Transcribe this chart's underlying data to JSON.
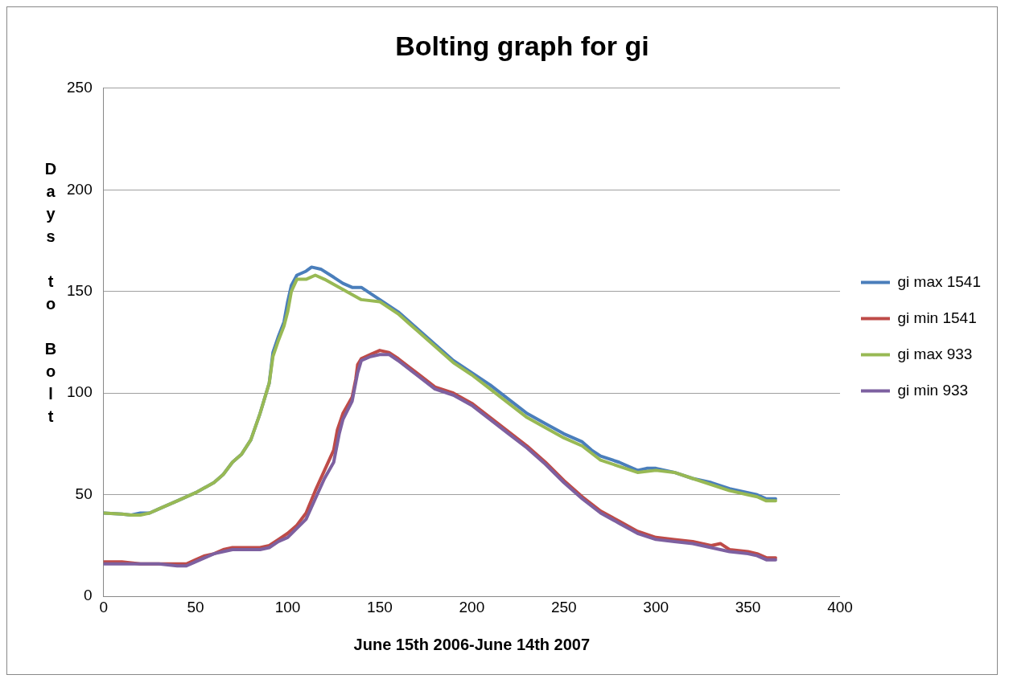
{
  "chart_data": {
    "type": "line",
    "title": "Bolting graph for gi",
    "xlabel": "June 15th 2006-June 14th 2007",
    "ylabel": "Days to Bolt",
    "xlim": [
      0,
      400
    ],
    "xticks": [
      0,
      50,
      100,
      150,
      200,
      250,
      300,
      350,
      400
    ],
    "ylim": [
      0,
      250
    ],
    "yticks": [
      0,
      50,
      100,
      150,
      200,
      250
    ],
    "grid": "y",
    "legend": "right",
    "marker": "none",
    "line_style": "solid",
    "series": [
      {
        "name": "gi max 1541",
        "color": "#4a7ebb",
        "x": [
          0,
          10,
          15,
          20,
          25,
          30,
          40,
          50,
          60,
          65,
          70,
          75,
          80,
          85,
          90,
          92,
          95,
          98,
          100,
          102,
          105,
          110,
          113,
          118,
          125,
          130,
          135,
          140,
          150,
          160,
          170,
          180,
          190,
          200,
          210,
          220,
          230,
          240,
          250,
          260,
          265,
          270,
          280,
          290,
          295,
          300,
          310,
          320,
          330,
          340,
          350,
          355,
          360,
          365
        ],
        "values": [
          41,
          40.5,
          40,
          41,
          41,
          43,
          47,
          51,
          56,
          60,
          66,
          70,
          77,
          90,
          105,
          120,
          128,
          135,
          145,
          153,
          158,
          160,
          162,
          161,
          157,
          154,
          152,
          152,
          146,
          140,
          132,
          124,
          116,
          110,
          104,
          97,
          90,
          85,
          80,
          76,
          72,
          69,
          66,
          62,
          63,
          63,
          61,
          58,
          56,
          53,
          51,
          50,
          48,
          48
        ]
      },
      {
        "name": "gi min 1541",
        "color": "#be4b48",
        "x": [
          0,
          10,
          20,
          30,
          40,
          45,
          50,
          55,
          60,
          65,
          70,
          80,
          85,
          90,
          95,
          100,
          105,
          110,
          115,
          120,
          125,
          127,
          130,
          135,
          137,
          138,
          140,
          145,
          150,
          155,
          160,
          170,
          180,
          190,
          200,
          210,
          220,
          230,
          240,
          250,
          260,
          270,
          280,
          290,
          300,
          310,
          320,
          330,
          335,
          340,
          350,
          355,
          360,
          365
        ],
        "values": [
          17,
          17,
          16,
          16,
          16,
          16,
          18,
          20,
          21,
          23,
          24,
          24,
          24,
          25,
          28,
          31,
          35,
          41,
          52,
          62,
          72,
          82,
          90,
          98,
          107,
          114,
          117,
          119,
          121,
          120,
          117,
          110,
          103,
          100,
          95,
          88,
          81,
          74,
          66,
          57,
          49,
          42,
          37,
          32,
          29,
          28,
          27,
          25,
          26,
          23,
          22,
          21,
          19,
          19
        ]
      },
      {
        "name": "gi max 933",
        "color": "#98b954",
        "x": [
          0,
          10,
          15,
          20,
          25,
          30,
          40,
          50,
          60,
          65,
          70,
          75,
          80,
          85,
          90,
          92,
          95,
          98,
          100,
          102,
          105,
          110,
          115,
          120,
          130,
          140,
          150,
          160,
          170,
          180,
          190,
          200,
          210,
          220,
          230,
          240,
          250,
          260,
          270,
          280,
          290,
          300,
          310,
          320,
          330,
          340,
          350,
          355,
          360,
          365
        ],
        "values": [
          41,
          40.5,
          40,
          40,
          41,
          43,
          47,
          51,
          56,
          60,
          66,
          70,
          77,
          90,
          105,
          118,
          126,
          133,
          140,
          150,
          156,
          156,
          158,
          156,
          151,
          146,
          145,
          139,
          131,
          123,
          115,
          109,
          102,
          95,
          88,
          83,
          78,
          74,
          67,
          64,
          61,
          62,
          61,
          58,
          55,
          52,
          50,
          49,
          47,
          47
        ]
      },
      {
        "name": "gi min 933",
        "color": "#7d60a0",
        "x": [
          0,
          10,
          20,
          30,
          40,
          45,
          50,
          55,
          60,
          65,
          70,
          80,
          85,
          90,
          95,
          100,
          110,
          115,
          120,
          125,
          128,
          130,
          135,
          138,
          140,
          145,
          150,
          155,
          160,
          170,
          180,
          190,
          200,
          210,
          220,
          230,
          240,
          250,
          260,
          270,
          280,
          290,
          300,
          310,
          320,
          330,
          340,
          350,
          355,
          360,
          365
        ],
        "values": [
          16,
          16,
          16,
          16,
          15,
          15,
          17,
          19,
          21,
          22,
          23,
          23,
          23,
          24,
          27,
          29,
          38,
          48,
          58,
          66,
          80,
          87,
          96,
          110,
          116,
          118,
          119,
          119,
          116,
          109,
          102,
          99,
          94,
          87,
          80,
          73,
          65,
          56,
          48,
          41,
          36,
          31,
          28,
          27,
          26,
          24,
          22,
          21,
          20,
          18,
          18
        ]
      }
    ]
  }
}
